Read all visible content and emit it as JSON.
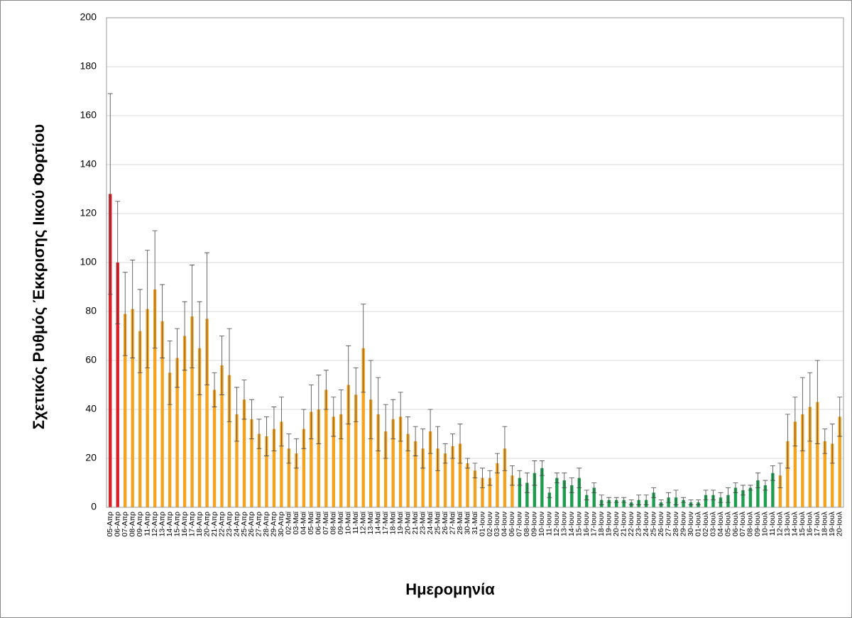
{
  "chart_data": {
    "type": "bar",
    "y_label": "Σχετικός Ρυθμός Έκκρισης Ιικού Φορτίου",
    "x_label": "Ημερομηνία",
    "categories": [
      "05-Απρ",
      "06-Απρ",
      "07-Απρ",
      "08-Απρ",
      "09-Απρ",
      "11-Απρ",
      "12-Απρ",
      "13-Απρ",
      "14-Απρ",
      "15-Απρ",
      "16-Απρ",
      "17-Απρ",
      "18-Απρ",
      "20-Απρ",
      "21-Απρ",
      "22-Απρ",
      "23-Απρ",
      "24-Απρ",
      "25-Απρ",
      "26-Απρ",
      "27-Απρ",
      "28-Απρ",
      "29-Απρ",
      "30-Απρ",
      "02-Μαϊ",
      "03-Μαϊ",
      "04-Μαϊ",
      "05-Μαϊ",
      "06-Μαϊ",
      "07-Μαϊ",
      "08-Μαϊ",
      "09-Μαϊ",
      "10-Μαϊ",
      "11-Μαϊ",
      "12-Μαϊ",
      "13-Μαϊ",
      "14-Μαϊ",
      "17-Μαϊ",
      "18-Μαϊ",
      "19-Μαϊ",
      "20-Μαϊ",
      "21-Μαϊ",
      "23-Μαϊ",
      "24-Μαϊ",
      "25-Μαϊ",
      "26-Μαϊ",
      "27-Μαϊ",
      "28-Μαϊ",
      "30-Μαϊ",
      "31-Μαϊ",
      "01-Ιουν",
      "02-Ιουν",
      "03-Ιουν",
      "04-Ιουν",
      "06-Ιουν",
      "07-Ιουν",
      "08-Ιουν",
      "09-Ιουν",
      "10-Ιουν",
      "11-Ιουν",
      "12-Ιουν",
      "13-Ιουν",
      "14-Ιουν",
      "15-Ιουν",
      "16-Ιουν",
      "17-Ιουν",
      "18-Ιουν",
      "19-Ιουν",
      "20-Ιουν",
      "21-Ιουν",
      "22-Ιουν",
      "23-Ιουν",
      "24-Ιουν",
      "25-Ιουν",
      "26-Ιουν",
      "27-Ιουν",
      "28-Ιουν",
      "29-Ιουν",
      "30-Ιουν",
      "01-Ιουλ",
      "02-Ιουλ",
      "03-Ιουλ",
      "04-Ιουλ",
      "05-Ιουλ",
      "06-Ιουλ",
      "07-Ιουλ",
      "08-Ιουλ",
      "09-Ιουλ",
      "10-Ιουλ",
      "11-Ιουλ",
      "12-Ιουλ",
      "13-Ιουλ",
      "14-Ιουλ",
      "15-Ιουλ",
      "16-Ιουλ",
      "17-Ιουλ",
      "18-Ιουλ",
      "19-Ιουλ",
      "20-Ιουλ"
    ],
    "values": [
      128,
      100,
      79,
      81,
      72,
      81,
      89,
      76,
      55,
      61,
      70,
      78,
      65,
      77,
      48,
      58,
      54,
      38,
      44,
      36,
      30,
      29,
      32,
      35,
      24,
      22,
      32,
      39,
      40,
      48,
      37,
      38,
      50,
      46,
      65,
      44,
      38,
      31,
      36,
      37,
      30,
      27,
      24,
      31,
      24,
      22,
      25,
      26,
      18,
      15,
      12,
      12,
      18,
      24,
      13,
      12,
      10,
      14,
      16,
      6,
      12,
      11,
      9,
      12,
      5,
      8,
      3,
      3,
      3,
      3,
      2,
      3,
      3,
      6,
      2,
      4,
      4,
      3,
      2,
      2,
      5,
      5,
      4,
      5,
      8,
      7,
      8,
      11,
      9,
      14,
      13,
      27,
      35,
      38,
      41,
      43,
      27,
      26,
      37
    ],
    "errors": [
      41,
      25,
      17,
      20,
      17,
      24,
      24,
      15,
      13,
      12,
      14,
      21,
      19,
      27,
      7,
      12,
      19,
      11,
      8,
      8,
      6,
      8,
      9,
      10,
      6,
      6,
      8,
      11,
      14,
      8,
      8,
      10,
      16,
      11,
      18,
      16,
      15,
      11,
      8,
      10,
      7,
      6,
      8,
      9,
      9,
      4,
      5,
      8,
      2,
      3,
      4,
      3,
      4,
      9,
      4,
      3,
      4,
      5,
      3,
      2,
      2,
      3,
      3,
      4,
      2,
      2,
      2,
      1,
      1,
      1,
      1,
      2,
      2,
      2,
      1,
      2,
      3,
      1,
      1,
      1,
      2,
      2,
      2,
      3,
      2,
      2,
      1,
      3,
      2,
      3,
      5,
      11,
      10,
      15,
      14,
      17,
      5,
      8,
      8
    ],
    "colors": [
      "#dc1f26",
      "#dc1f26",
      "#f4a321",
      "#f4a321",
      "#f4a321",
      "#f4a321",
      "#f4a321",
      "#f4a321",
      "#f4a321",
      "#f4a321",
      "#f4a321",
      "#f4a321",
      "#f4a321",
      "#f4a321",
      "#f4a321",
      "#f4a321",
      "#f4a321",
      "#f4a321",
      "#f4a321",
      "#f4a321",
      "#f4a321",
      "#f4a321",
      "#f4a321",
      "#f4a321",
      "#f4a321",
      "#f4a321",
      "#f4a321",
      "#f4a321",
      "#f4a321",
      "#f4a321",
      "#f4a321",
      "#f4a321",
      "#f4a321",
      "#f4a321",
      "#f4a321",
      "#f4a321",
      "#f4a321",
      "#f4a321",
      "#f4a321",
      "#f4a321",
      "#f4a321",
      "#f4a321",
      "#f4a321",
      "#f4a321",
      "#f4a321",
      "#f4a321",
      "#f4a321",
      "#f4a321",
      "#f4a321",
      "#f4a321",
      "#f4a321",
      "#f4a321",
      "#f4a321",
      "#f4a321",
      "#f4a321",
      "#1e9d4f",
      "#1e9d4f",
      "#1e9d4f",
      "#1e9d4f",
      "#1e9d4f",
      "#1e9d4f",
      "#1e9d4f",
      "#1e9d4f",
      "#1e9d4f",
      "#1e9d4f",
      "#1e9d4f",
      "#1e9d4f",
      "#1e9d4f",
      "#1e9d4f",
      "#1e9d4f",
      "#1e9d4f",
      "#1e9d4f",
      "#1e9d4f",
      "#1e9d4f",
      "#1e9d4f",
      "#1e9d4f",
      "#1e9d4f",
      "#1e9d4f",
      "#1e9d4f",
      "#1e9d4f",
      "#1e9d4f",
      "#1e9d4f",
      "#1e9d4f",
      "#1e9d4f",
      "#1e9d4f",
      "#1e9d4f",
      "#1e9d4f",
      "#1e9d4f",
      "#1e9d4f",
      "#1e9d4f",
      "#f4a321",
      "#f4a321",
      "#f4a321",
      "#f4a321",
      "#f4a321",
      "#f4a321",
      "#f4a321",
      "#f4a321",
      "#f4a321"
    ],
    "ylim": [
      0,
      200
    ],
    "yticks": [
      0,
      20,
      40,
      60,
      80,
      100,
      120,
      140,
      160,
      180,
      200
    ],
    "grid": true
  }
}
